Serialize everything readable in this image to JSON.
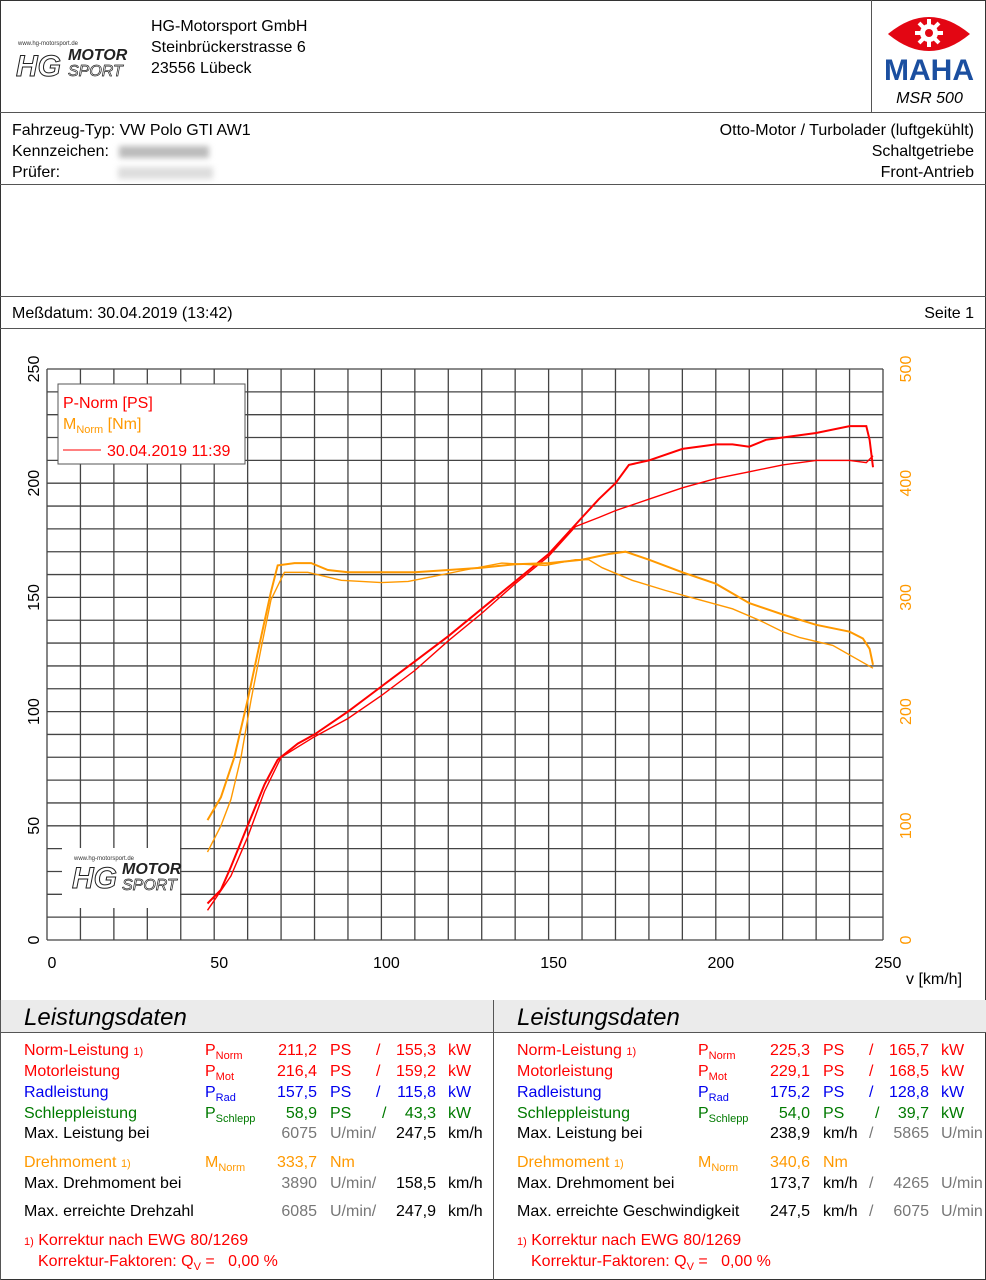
{
  "header": {
    "company": "HG-Motorsport GmbH",
    "street": "Steinbrückerstrasse 6",
    "city": "23556 Lübeck",
    "logo_text": "www.hg-motorsport.de HG MOTOR SPORT",
    "maha_logo": "MAHA",
    "model": "MSR 500"
  },
  "vehicle": {
    "type_label": "Fahrzeug-Typ:",
    "type_value": "VW Polo GTI AW1",
    "plate_label": "Kennzeichen:",
    "examiner_label": "Prüfer:",
    "engine": "Otto-Motor / Turbolader (luftgekühlt)",
    "gearbox": "Schaltgetriebe",
    "drive": "Front-Antrieb"
  },
  "meta": {
    "date_label": "Meßdatum: 30.04.2019 (13:42)",
    "page_label": "Seite 1"
  },
  "colors": {
    "power": "#ff0000",
    "torque": "#ff9900",
    "grid": "#444444"
  },
  "chart_data": {
    "type": "line",
    "xlabel": "v [km/h]",
    "xlim": [
      0,
      250
    ],
    "x_ticks": [
      "0",
      "50",
      "100",
      "150",
      "200",
      "250"
    ],
    "ylim_left": [
      0,
      250
    ],
    "y_ticks_left": [
      "0",
      "50",
      "100",
      "150",
      "200",
      "250"
    ],
    "ylim_right": [
      0,
      500
    ],
    "y_ticks_right": [
      "0",
      "100",
      "200",
      "300",
      "400",
      "500"
    ],
    "grid": true,
    "legend_position": "top-left",
    "legend": {
      "power": "P-Norm [PS]",
      "torque_main": "M",
      "torque_sub": "Norm",
      "torque_unit": " [Nm]",
      "run": "30.04.2019 11:39"
    },
    "series": [
      {
        "name": "P-Norm [PS]",
        "axis": "left",
        "points": [
          [
            48,
            16
          ],
          [
            52,
            22
          ],
          [
            55,
            32
          ],
          [
            60,
            50
          ],
          [
            65,
            68
          ],
          [
            69,
            79
          ],
          [
            75,
            86
          ],
          [
            80,
            90
          ],
          [
            90,
            100
          ],
          [
            100,
            111
          ],
          [
            110,
            122
          ],
          [
            120,
            133
          ],
          [
            130,
            145
          ],
          [
            140,
            157
          ],
          [
            150,
            169
          ],
          [
            160,
            185
          ],
          [
            165,
            193
          ],
          [
            170,
            200
          ],
          [
            174,
            208
          ],
          [
            180,
            210
          ],
          [
            190,
            215
          ],
          [
            200,
            217
          ],
          [
            205,
            217
          ],
          [
            210,
            216
          ],
          [
            215,
            219
          ],
          [
            220,
            220
          ],
          [
            225,
            221
          ],
          [
            230,
            222
          ],
          [
            240,
            225
          ],
          [
            245,
            225
          ],
          [
            246,
            219
          ],
          [
            247,
            207
          ]
        ]
      },
      {
        "name": "P-Norm [PS]",
        "axis": "left",
        "points": [
          [
            48,
            13
          ],
          [
            55,
            28
          ],
          [
            60,
            45
          ],
          [
            65,
            65
          ],
          [
            70,
            80
          ],
          [
            80,
            89
          ],
          [
            90,
            97
          ],
          [
            100,
            107
          ],
          [
            110,
            118
          ],
          [
            120,
            131
          ],
          [
            130,
            143
          ],
          [
            140,
            156
          ],
          [
            150,
            168
          ],
          [
            158,
            181
          ],
          [
            165,
            185
          ],
          [
            170,
            188
          ],
          [
            180,
            193
          ],
          [
            190,
            198
          ],
          [
            200,
            202
          ],
          [
            210,
            205
          ],
          [
            220,
            208
          ],
          [
            230,
            210
          ],
          [
            240,
            210
          ],
          [
            245,
            209
          ],
          [
            247,
            212
          ]
        ]
      },
      {
        "name": "M-Norm [Nm]",
        "axis": "right",
        "points": [
          [
            48,
            105
          ],
          [
            52,
            125
          ],
          [
            56,
            160
          ],
          [
            60,
            210
          ],
          [
            64,
            265
          ],
          [
            67,
            305
          ],
          [
            69,
            328
          ],
          [
            74,
            330
          ],
          [
            79,
            330
          ],
          [
            84,
            324
          ],
          [
            90,
            322
          ],
          [
            100,
            322
          ],
          [
            110,
            322
          ],
          [
            120,
            324
          ],
          [
            130,
            326
          ],
          [
            140,
            329
          ],
          [
            150,
            330
          ],
          [
            160,
            333
          ],
          [
            168,
            338
          ],
          [
            173,
            340
          ],
          [
            180,
            333
          ],
          [
            190,
            322
          ],
          [
            200,
            312
          ],
          [
            210,
            295
          ],
          [
            220,
            285
          ],
          [
            230,
            276
          ],
          [
            240,
            270
          ],
          [
            244,
            264
          ],
          [
            246,
            255
          ],
          [
            247,
            241
          ]
        ]
      },
      {
        "name": "M-Norm [Nm]",
        "axis": "right",
        "points": [
          [
            48,
            77
          ],
          [
            52,
            100
          ],
          [
            55,
            123
          ],
          [
            58,
            160
          ],
          [
            61,
            210
          ],
          [
            64,
            255
          ],
          [
            67,
            298
          ],
          [
            71,
            322
          ],
          [
            78,
            322
          ],
          [
            88,
            315
          ],
          [
            100,
            313
          ],
          [
            108,
            314
          ],
          [
            115,
            318
          ],
          [
            125,
            324
          ],
          [
            136,
            330
          ],
          [
            149,
            328
          ],
          [
            158,
            333
          ],
          [
            162,
            333
          ],
          [
            166,
            326
          ],
          [
            175,
            315
          ],
          [
            185,
            306
          ],
          [
            195,
            298
          ],
          [
            205,
            290
          ],
          [
            213,
            280
          ],
          [
            220,
            270
          ],
          [
            225,
            265
          ],
          [
            235,
            258
          ],
          [
            247,
            238
          ]
        ]
      }
    ]
  },
  "left_panel": {
    "title": "Leistungsdaten",
    "rows": [
      {
        "label": "Norm-Leistung",
        "note": "1)",
        "sym": "P",
        "sub": "Norm",
        "v1": "211,2",
        "u1": "PS",
        "sep": "/",
        "v2": "155,3",
        "u2": "kW"
      },
      {
        "label": "Motorleistung",
        "sym": "P",
        "sub": "Mot",
        "v1": "216,4",
        "u1": "PS",
        "sep": "/",
        "v2": "159,2",
        "u2": "kW"
      },
      {
        "label": "Radleistung",
        "sym": "P",
        "sub": "Rad",
        "v1": "157,5",
        "u1": "PS",
        "sep": "/",
        "v2": "115,8",
        "u2": "kW"
      },
      {
        "label": "Schleppleistung",
        "sym": "P",
        "sub": "Schlepp",
        "v1": "58,9",
        "u1": "PS",
        "sep": "/",
        "v2": "43,3",
        "u2": "kW"
      },
      {
        "label": "Max. Leistung bei",
        "v1": "6075",
        "u1": "U/min/",
        "v2": "247,5",
        "u2": "km/h"
      },
      {
        "label": "Drehmoment",
        "note": "1)",
        "sym": "M",
        "sub": "Norm",
        "v1": "333,7",
        "u1": "Nm"
      },
      {
        "label": "Max. Drehmoment bei",
        "v1": "3890",
        "u1": "U/min/",
        "v2": "158,5",
        "u2": "km/h"
      },
      {
        "label": "Max. erreichte Drehzahl",
        "v1": "6085",
        "u1": "U/min/",
        "v2": "247,9",
        "u2": "km/h"
      }
    ],
    "foot_note": "1)",
    "foot1": "Korrektur nach EWG 80/1269",
    "foot2a": "Korrektur-Faktoren: Q",
    "foot2sub": "V",
    "foot2b": " =   0,00 %"
  },
  "right_panel": {
    "title": "Leistungsdaten",
    "rows": [
      {
        "label": "Norm-Leistung",
        "note": "1)",
        "sym": "P",
        "sub": "Norm",
        "v1": "225,3",
        "u1": "PS",
        "sep": "/",
        "v2": "165,7",
        "u2": "kW"
      },
      {
        "label": "Motorleistung",
        "sym": "P",
        "sub": "Mot",
        "v1": "229,1",
        "u1": "PS",
        "sep": "/",
        "v2": "168,5",
        "u2": "kW"
      },
      {
        "label": "Radleistung",
        "sym": "P",
        "sub": "Rad",
        "v1": "175,2",
        "u1": "PS",
        "sep": "/",
        "v2": "128,8",
        "u2": "kW"
      },
      {
        "label": "Schleppleistung",
        "sym": "P",
        "sub": "Schlepp",
        "v1": "54,0",
        "u1": "PS",
        "sep": "/",
        "v2": "39,7",
        "u2": "kW"
      },
      {
        "label": "Max. Leistung bei",
        "v1": "238,9",
        "u1": "km/h",
        "sep": "/",
        "v2": "5865",
        "u2": "U/min"
      },
      {
        "label": "Drehmoment",
        "note": "1)",
        "sym": "M",
        "sub": "Norm",
        "v1": "340,6",
        "u1": "Nm"
      },
      {
        "label": "Max. Drehmoment bei",
        "v1": "173,7",
        "u1": "km/h",
        "sep": "/",
        "v2": "4265",
        "u2": "U/min"
      },
      {
        "label": "Max. erreichte Geschwindigkeit",
        "v1": "247,5",
        "u1": "km/h",
        "sep": "/",
        "v2": "6075",
        "u2": "U/min"
      }
    ],
    "foot_note": "1)",
    "foot1": "Korrektur nach EWG 80/1269",
    "foot2a": "Korrektur-Faktoren: Q",
    "foot2sub": "V",
    "foot2b": " =   0,00 %"
  }
}
